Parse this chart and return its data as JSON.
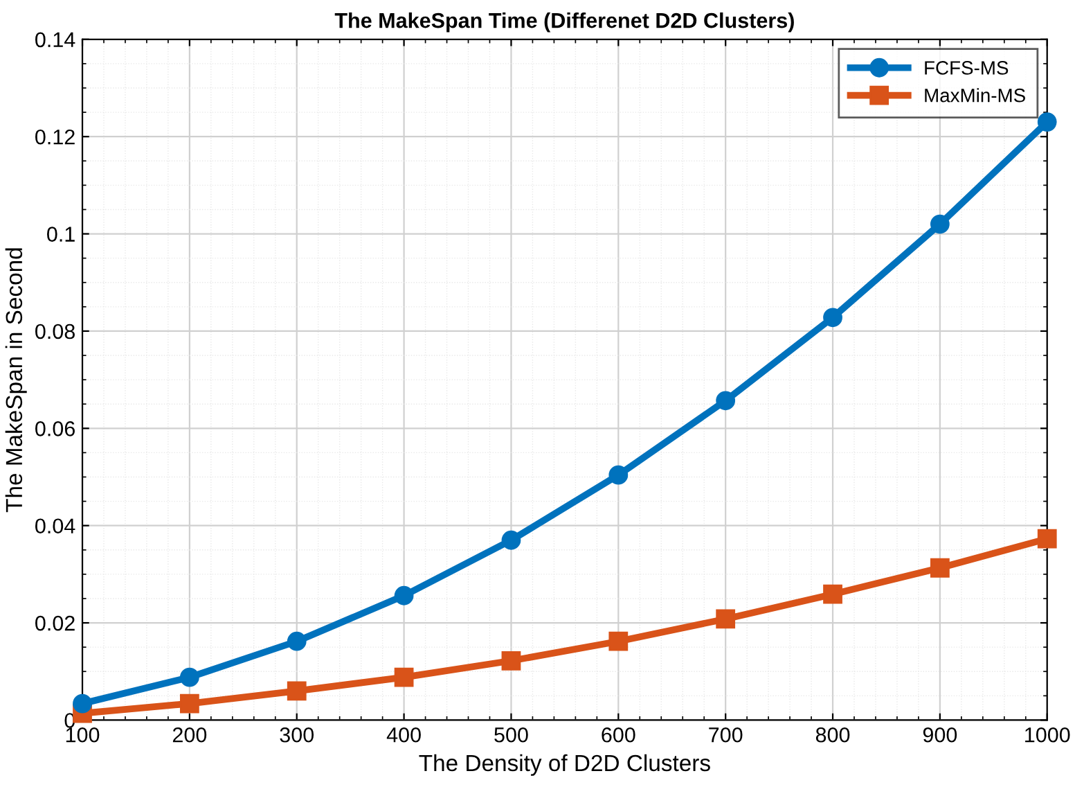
{
  "chart_data": {
    "type": "line",
    "title": "The MakeSpan Time (Differenet D2D Clusters)",
    "xlabel": "The Density of D2D Clusters",
    "ylabel": "The MakeSpan in Second",
    "x": [
      100,
      200,
      300,
      400,
      500,
      600,
      700,
      800,
      900,
      1000
    ],
    "series": [
      {
        "name": "FCFS-MS",
        "color": "#0072bd",
        "marker": "circle",
        "values": [
          0.0034,
          0.0088,
          0.0162,
          0.0256,
          0.037,
          0.0504,
          0.0657,
          0.0828,
          0.102,
          0.123
        ]
      },
      {
        "name": "MaxMin-MS",
        "color": "#d95319",
        "marker": "square",
        "values": [
          0.0014,
          0.0034,
          0.006,
          0.0088,
          0.0122,
          0.0162,
          0.0208,
          0.0259,
          0.0313,
          0.0373
        ]
      }
    ],
    "xlim": [
      100,
      1000
    ],
    "xticks": [
      100,
      200,
      300,
      400,
      500,
      600,
      700,
      800,
      900,
      1000
    ],
    "ylim": [
      0,
      0.14
    ],
    "yticks": [
      0,
      0.02,
      0.04,
      0.06,
      0.08,
      {
        "value": 0.1,
        "label": "0.1"
      },
      0.12,
      0.14
    ],
    "grid": true,
    "legend": "top right",
    "line_style": "solid"
  }
}
